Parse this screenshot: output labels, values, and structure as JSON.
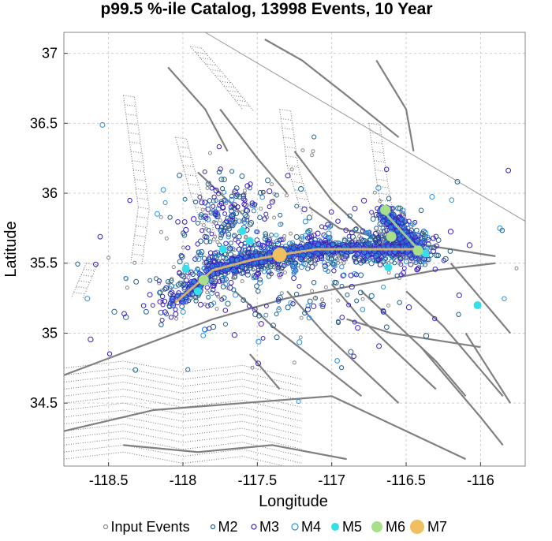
{
  "chart_data": {
    "type": "scatter",
    "title": "p99.5 %-ile Catalog, 13998 Events, 10 Year",
    "xlabel": "Longitude",
    "ylabel": "Latitude",
    "xlim": [
      -118.8,
      -115.7
    ],
    "ylim": [
      34.05,
      37.15
    ],
    "x_ticks": [
      -118.5,
      -118,
      -117.5,
      -117,
      -116.5,
      -116
    ],
    "y_ticks": [
      34.5,
      35,
      35.5,
      36,
      36.5,
      37
    ],
    "grid": true,
    "legend_position": "bottom",
    "legend": [
      "Input Events",
      "M2",
      "M3",
      "M4",
      "M5",
      "M6",
      "M7"
    ],
    "colors": {
      "input_events": "#8a8a8a",
      "m2": "#1f5f8b",
      "m3": "#3a1fbf",
      "m4": "#2a8fe0",
      "m5": "#33e0e8",
      "m6": "#a8e08a",
      "m7": "#f0c060",
      "faults": "#808080",
      "rupture_trace": "#f0c060"
    },
    "series": [
      {
        "name": "M5",
        "x": [
          -117.98,
          -117.73,
          -117.6,
          -117.55,
          -117.9,
          -116.62,
          -116.37,
          -116.02
        ],
        "y": [
          35.46,
          35.6,
          35.73,
          35.66,
          35.3,
          35.47,
          35.57,
          35.2
        ]
      },
      {
        "name": "M6",
        "x": [
          -117.86,
          -116.6,
          -116.42,
          -116.64
        ],
        "y": [
          35.38,
          35.69,
          35.59,
          35.88
        ]
      },
      {
        "name": "M7",
        "x": [
          -117.35
        ],
        "y": [
          35.56
        ]
      }
    ],
    "rupture_trace": [
      {
        "x": -118.05,
        "y": 35.22
      },
      {
        "x": -117.8,
        "y": 35.45
      },
      {
        "x": -117.55,
        "y": 35.52
      },
      {
        "x": -117.35,
        "y": 35.56
      },
      {
        "x": -117.1,
        "y": 35.6
      },
      {
        "x": -116.85,
        "y": 35.6
      },
      {
        "x": -116.6,
        "y": 35.6
      },
      {
        "x": -116.4,
        "y": 35.6
      }
    ],
    "rupture_branch": [
      {
        "x": -116.66,
        "y": 35.88
      },
      {
        "x": -116.55,
        "y": 35.75
      },
      {
        "x": -116.42,
        "y": 35.6
      }
    ]
  }
}
